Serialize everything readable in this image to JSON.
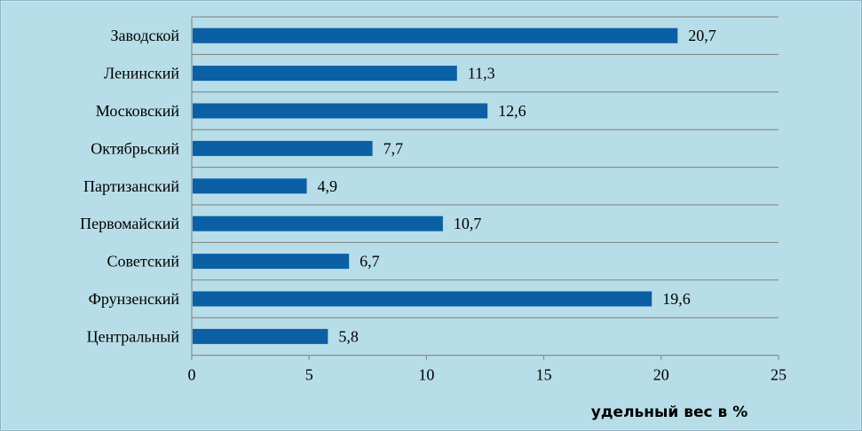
{
  "chart_data": {
    "type": "bar",
    "orientation": "horizontal",
    "categories": [
      "Заводской",
      "Ленинский",
      "Московский",
      "Октябрьский",
      "Партизанский",
      "Первомайский",
      "Советский",
      "Фрунзенский",
      "Центральный"
    ],
    "values": [
      20.7,
      11.3,
      12.6,
      7.7,
      4.9,
      10.7,
      6.7,
      19.6,
      5.8
    ],
    "value_labels": [
      "20,7",
      "11,3",
      "12,6",
      "7,7",
      "4,9",
      "10,7",
      "6,7",
      "19,6",
      "5,8"
    ],
    "xlim": [
      0,
      25
    ],
    "xticks": [
      0,
      5,
      10,
      15,
      20,
      25
    ],
    "xtick_labels": [
      "0",
      "5",
      "10",
      "15",
      "20",
      "25"
    ],
    "xlabel": "удельный вес в %",
    "grid": "horizontal",
    "colors": {
      "bar": "#0b5fa5",
      "background": "#b7dde8",
      "gridline": "#7f7f7f",
      "axis": "#7f7f7f"
    }
  }
}
